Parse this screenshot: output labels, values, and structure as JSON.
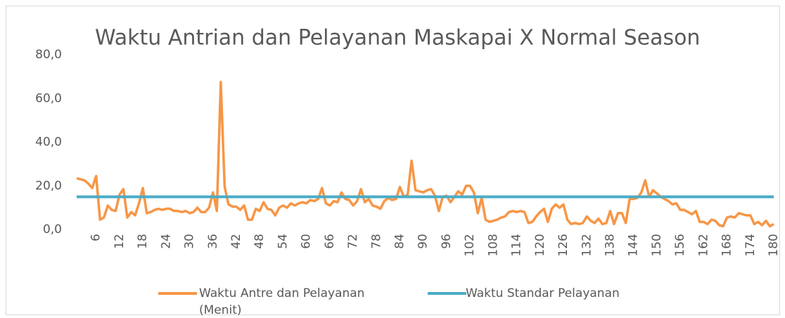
{
  "chart_data": {
    "type": "line",
    "title": "Waktu Antrian dan Pelayanan Maskapai X Normal Season",
    "x": [
      1,
      2,
      3,
      4,
      5,
      6,
      7,
      8,
      9,
      10,
      11,
      12,
      13,
      14,
      15,
      16,
      17,
      18,
      19,
      20,
      21,
      22,
      23,
      24,
      25,
      26,
      27,
      28,
      29,
      30,
      31,
      32,
      33,
      34,
      35,
      36,
      37,
      38,
      39,
      40,
      41,
      42,
      43,
      44,
      45,
      46,
      47,
      48,
      49,
      50,
      51,
      52,
      53,
      54,
      55,
      56,
      57,
      58,
      59,
      60,
      61,
      62,
      63,
      64,
      65,
      66,
      67,
      68,
      69,
      70,
      71,
      72,
      73,
      74,
      75,
      76,
      77,
      78,
      79,
      80,
      81,
      82,
      83,
      84,
      85,
      86,
      87,
      88,
      89,
      90,
      91,
      92,
      93,
      94,
      95,
      96,
      97,
      98,
      99,
      100,
      101,
      102,
      103,
      104,
      105,
      106,
      107,
      108,
      109,
      110,
      111,
      112,
      113,
      114,
      115,
      116,
      117,
      118,
      119,
      120,
      121,
      122,
      123,
      124,
      125,
      126,
      127,
      128,
      129,
      130,
      131,
      132,
      133,
      134,
      135,
      136,
      137,
      138,
      139,
      140,
      141,
      142,
      143,
      144,
      145,
      146,
      147,
      148,
      149,
      150,
      151,
      152,
      153,
      154,
      155,
      156,
      157,
      158,
      159,
      160,
      161,
      162,
      163,
      164,
      165,
      166,
      167,
      168,
      169,
      170,
      171,
      172,
      173,
      174,
      175,
      176,
      177,
      178,
      179,
      180
    ],
    "series": [
      {
        "name": "Waktu Antre dan Pelayanan (Menit)",
        "color": "#f79646",
        "values": [
          23.5,
          23,
          22.5,
          21,
          19,
          24.5,
          4.5,
          5.5,
          11,
          9,
          8.5,
          16,
          18.5,
          5.5,
          8,
          6.5,
          12,
          19,
          7.5,
          8,
          9,
          9.5,
          9,
          9.5,
          9.5,
          8.5,
          8.5,
          8,
          8.5,
          7.5,
          8,
          10,
          8,
          8,
          10,
          17,
          8.5,
          67.5,
          19.5,
          11.5,
          10.5,
          10.5,
          9,
          11,
          4.5,
          4.5,
          9.5,
          8.5,
          12.5,
          9.5,
          9,
          6.5,
          10,
          11,
          10,
          12,
          11,
          12,
          12.5,
          12,
          13.5,
          13,
          14,
          19,
          12,
          11,
          13,
          12.5,
          17,
          14,
          13.5,
          11,
          13,
          18.5,
          12.5,
          14,
          11,
          10.5,
          9.5,
          13,
          14.5,
          13.5,
          14,
          19.5,
          15,
          16,
          31.5,
          18,
          17.5,
          17,
          18,
          18.5,
          15.5,
          8.5,
          15,
          15.5,
          12.5,
          15,
          17.5,
          16,
          20,
          20,
          17,
          7.5,
          14.5,
          4.5,
          3.5,
          4,
          4.5,
          5.5,
          6,
          8,
          8.5,
          8,
          8.5,
          8,
          3,
          3.5,
          6,
          8,
          9.5,
          3.5,
          9.5,
          11.5,
          10,
          11.5,
          4.5,
          2.5,
          3,
          2.5,
          3,
          6,
          4,
          3,
          5,
          2.5,
          3,
          8.5,
          2.5,
          7.5,
          7.5,
          3,
          14,
          14,
          14.5,
          17,
          22.5,
          15,
          18,
          16.5,
          15,
          14,
          13,
          11.5,
          12,
          9,
          9,
          8,
          7,
          8.5,
          3.5,
          3.5,
          2.5,
          4.5,
          4,
          2,
          1.5,
          5.5,
          6,
          5.5,
          7.5,
          7,
          6.5,
          6.5,
          2.5,
          3.5,
          2,
          4,
          1.5,
          2.5
        ]
      },
      {
        "name": "Waktu Standar Pelayanan",
        "color": "#4bacc6",
        "values": [
          15,
          15,
          15,
          15,
          15,
          15,
          15,
          15,
          15,
          15,
          15,
          15,
          15,
          15,
          15,
          15,
          15,
          15,
          15,
          15,
          15,
          15,
          15,
          15,
          15,
          15,
          15,
          15,
          15,
          15,
          15,
          15,
          15,
          15,
          15,
          15,
          15,
          15,
          15,
          15,
          15,
          15,
          15,
          15,
          15,
          15,
          15,
          15,
          15,
          15,
          15,
          15,
          15,
          15,
          15,
          15,
          15,
          15,
          15,
          15,
          15,
          15,
          15,
          15,
          15,
          15,
          15,
          15,
          15,
          15,
          15,
          15,
          15,
          15,
          15,
          15,
          15,
          15,
          15,
          15,
          15,
          15,
          15,
          15,
          15,
          15,
          15,
          15,
          15,
          15,
          15,
          15,
          15,
          15,
          15,
          15,
          15,
          15,
          15,
          15,
          15,
          15,
          15,
          15,
          15,
          15,
          15,
          15,
          15,
          15,
          15,
          15,
          15,
          15,
          15,
          15,
          15,
          15,
          15,
          15,
          15,
          15,
          15,
          15,
          15,
          15,
          15,
          15,
          15,
          15,
          15,
          15,
          15,
          15,
          15,
          15,
          15,
          15,
          15,
          15,
          15,
          15,
          15,
          15,
          15,
          15,
          15,
          15,
          15,
          15,
          15,
          15,
          15,
          15,
          15,
          15,
          15,
          15,
          15,
          15,
          15,
          15,
          15,
          15,
          15,
          15,
          15,
          15,
          15,
          15,
          15,
          15,
          15,
          15,
          15,
          15,
          15,
          15,
          15,
          15
        ]
      }
    ],
    "xlim": [
      1,
      180
    ],
    "xticks": [
      6,
      12,
      18,
      24,
      30,
      36,
      42,
      48,
      54,
      60,
      66,
      72,
      78,
      84,
      90,
      96,
      102,
      108,
      114,
      120,
      126,
      132,
      138,
      144,
      150,
      156,
      162,
      168,
      174,
      180
    ],
    "ylim": [
      0,
      80
    ],
    "yticks": [
      {
        "value": 0,
        "label": "0,0"
      },
      {
        "value": 20,
        "label": "20,0"
      },
      {
        "value": 40,
        "label": "40,0"
      },
      {
        "value": 60,
        "label": "60,0"
      },
      {
        "value": 80,
        "label": "80,0"
      }
    ],
    "legend": "bottom"
  }
}
